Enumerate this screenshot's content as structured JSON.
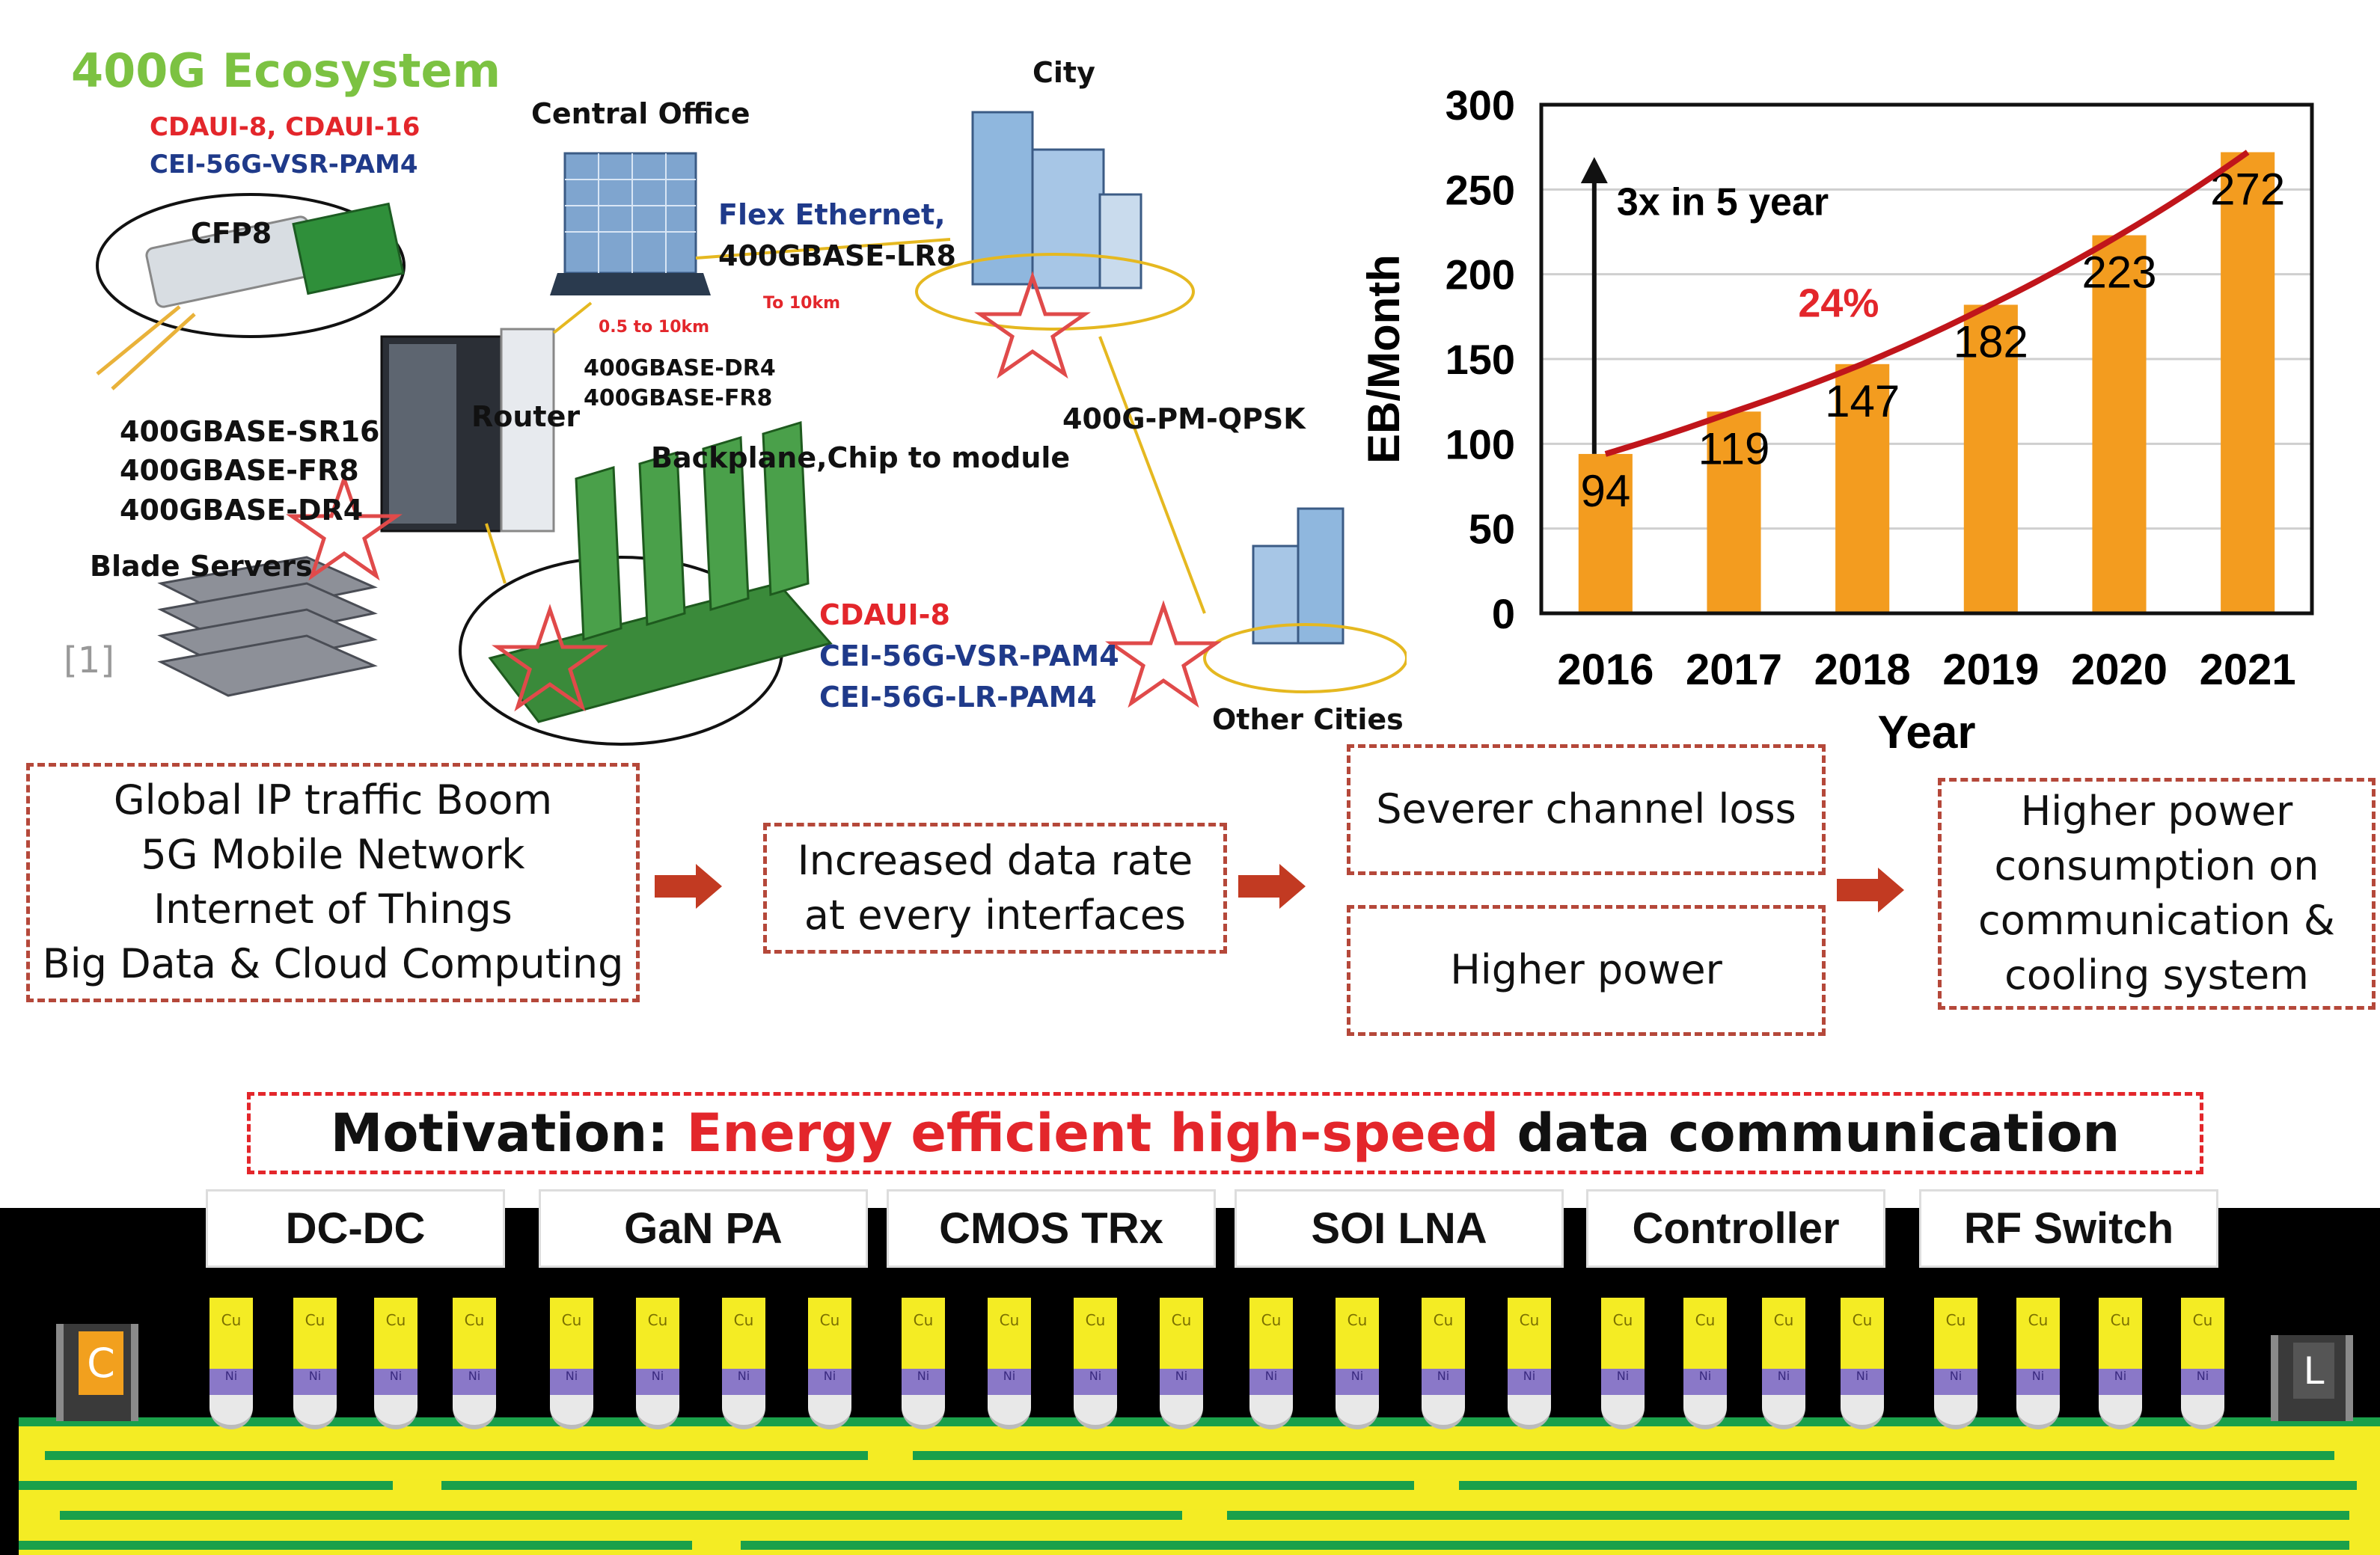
{
  "ecosystem": {
    "title": "400G Ecosystem",
    "cfp8_red": "CDAUI-8, CDAUI-16",
    "cfp8_blue": "CEI-56G-VSR-PAM4",
    "cfp8_label": "CFP8",
    "central_office": "Central Office",
    "city": "City",
    "flex_ethernet_line1": "Flex Ethernet,",
    "flex_ethernet_line2": "400GBASE-LR8",
    "to_10km": "To 10km",
    "span_05_10km": "0.5 to 10km",
    "co_dr4": "400GBASE-DR4",
    "co_fr8": "400GBASE-FR8",
    "router": "Router",
    "pm_qpsk": "400G-PM-QPSK",
    "server_links": [
      "400GBASE-SR16",
      "400GBASE-FR8",
      "400GBASE-DR4"
    ],
    "blade_servers": "Blade Servers",
    "ref": "[1]",
    "backplane": "Backplane,Chip to module",
    "bp_red": "CDAUI-8",
    "bp_blue1": "CEI-56G-VSR-PAM4",
    "bp_blue2": "CEI-56G-LR-PAM4",
    "other_cities": "Other Cities"
  },
  "chart_data": {
    "type": "bar",
    "categories": [
      "2016",
      "2017",
      "2018",
      "2019",
      "2020",
      "2021"
    ],
    "values": [
      94,
      119,
      147,
      182,
      223,
      272
    ],
    "xlabel": "Year",
    "ylabel": "EB/Month",
    "ylim": [
      0,
      300
    ],
    "yticks": [
      0,
      50,
      100,
      150,
      200,
      250,
      300
    ],
    "annotations": {
      "growth": "3x in 5 year",
      "cagr": "24%"
    },
    "colors": {
      "bar": "#f39c1f",
      "trend": "#c0151b",
      "cagr": "#e3262b"
    }
  },
  "flow": {
    "drivers": [
      "Global IP traffic Boom",
      "5G Mobile Network",
      "Internet of Things",
      "Big Data & Cloud Computing"
    ],
    "middle": [
      "Increased data rate",
      "at every interfaces"
    ],
    "loss": "Severer channel loss",
    "power": "Higher power",
    "result": [
      "Higher power",
      "consumption on",
      "communication &",
      "cooling system"
    ]
  },
  "motivation": {
    "prefix": "Motivation: ",
    "highlight": "Energy efficient high-speed",
    "suffix": " data communication"
  },
  "package": {
    "chips": [
      "DC-DC",
      "GaN PA",
      "CMOS TRx",
      "SOI LNA",
      "Controller",
      "RF Switch"
    ],
    "pillar_cu": "Cu",
    "pillar_ni": "Ni",
    "left_component": "C",
    "right_component": "L"
  }
}
